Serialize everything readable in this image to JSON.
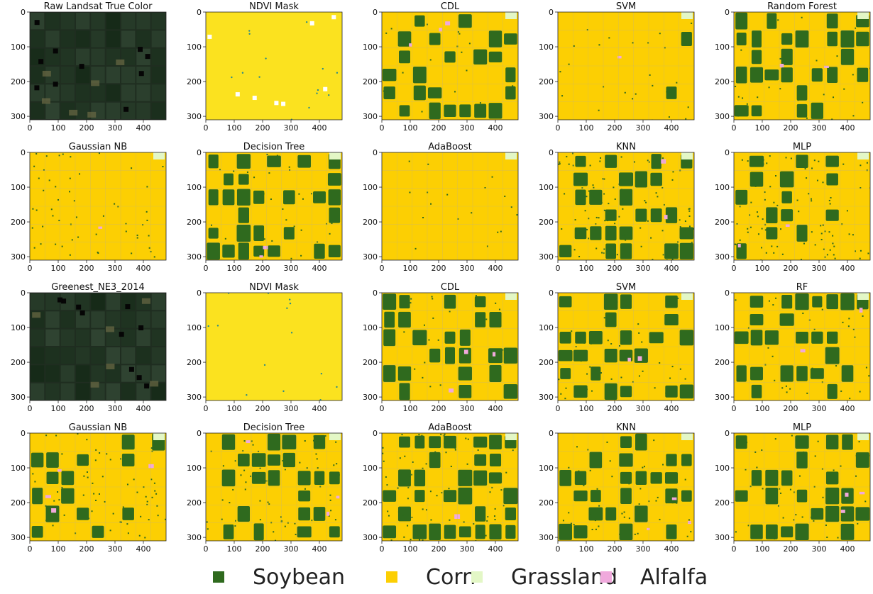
{
  "chart_data": {
    "type": "heatmap",
    "layout": "4 rows x 5 columns of classification map images",
    "xlim": [
      0,
      480
    ],
    "ylim": [
      310,
      0
    ],
    "x_ticks": [
      "0",
      "100",
      "200",
      "300",
      "400"
    ],
    "y_ticks": [
      "0",
      "100",
      "200",
      "300"
    ],
    "colors": {
      "soybean": "#2f6a1e",
      "corn": "#fccf03",
      "grassland": "#e3f7c6",
      "alfalfa": "#f0a9dc",
      "ndvi_background": "#fbe21f",
      "raw_dark": "#1f2d20"
    },
    "panels": [
      {
        "title": "Raw Landsat True Color",
        "style": "raw",
        "seed": 11
      },
      {
        "title": "NDVI Mask",
        "style": "ndvi",
        "seed": 12
      },
      {
        "title": "CDL",
        "style": "classes",
        "soy": 0.36,
        "speck": 0.02,
        "alf": 0.03,
        "seed": 13
      },
      {
        "title": "SVM",
        "style": "classes",
        "soy": 0.02,
        "speck": 0.03,
        "alf": 0.01,
        "seed": 14
      },
      {
        "title": "Random Forest",
        "style": "classes",
        "soy": 0.36,
        "speck": 0.04,
        "alf": 0.02,
        "seed": 15
      },
      {
        "title": "Gaussian NB",
        "style": "classes",
        "soy": 0.01,
        "speck": 0.06,
        "alf": 0.01,
        "seed": 21
      },
      {
        "title": "Decision Tree",
        "style": "classes",
        "soy": 0.36,
        "speck": 0.05,
        "alf": 0.02,
        "seed": 22
      },
      {
        "title": "AdaBoost",
        "style": "classes",
        "soy": 0.0,
        "speck": 0.02,
        "alf": 0.0,
        "seed": 23
      },
      {
        "title": "KNN",
        "style": "classes",
        "soy": 0.3,
        "speck": 0.12,
        "alf": 0.02,
        "seed": 24
      },
      {
        "title": "MLP",
        "style": "classes",
        "soy": 0.22,
        "speck": 0.12,
        "alf": 0.02,
        "seed": 25
      },
      {
        "title": "Greenest_NE3_2014",
        "style": "raw",
        "seed": 31
      },
      {
        "title": "NDVI Mask",
        "style": "ndvi",
        "seed": 32
      },
      {
        "title": "CDL",
        "style": "classes",
        "soy": 0.3,
        "speck": 0.03,
        "alf": 0.03,
        "seed": 33
      },
      {
        "title": "SVM",
        "style": "classes",
        "soy": 0.26,
        "speck": 0.05,
        "alf": 0.02,
        "seed": 34
      },
      {
        "title": "RF",
        "style": "classes",
        "soy": 0.26,
        "speck": 0.05,
        "alf": 0.02,
        "seed": 35
      },
      {
        "title": "Gaussian NB",
        "style": "classes",
        "soy": 0.22,
        "speck": 0.08,
        "alf": 0.04,
        "seed": 41
      },
      {
        "title": "Decision Tree",
        "style": "classes",
        "soy": 0.24,
        "speck": 0.08,
        "alf": 0.03,
        "seed": 42
      },
      {
        "title": "AdaBoost",
        "style": "classes",
        "soy": 0.45,
        "speck": 0.1,
        "alf": 0.01,
        "seed": 43
      },
      {
        "title": "KNN",
        "style": "classes",
        "soy": 0.24,
        "speck": 0.06,
        "alf": 0.03,
        "seed": 44
      },
      {
        "title": "MLP",
        "style": "classes",
        "soy": 0.24,
        "speck": 0.06,
        "alf": 0.03,
        "seed": 45
      }
    ],
    "legend": [
      {
        "label": "Soybean",
        "color": "#2f6a1e"
      },
      {
        "label": "Corn",
        "color": "#fccf03"
      },
      {
        "label": "Grassland",
        "color": "#e3f7c6"
      },
      {
        "label": "Alfalfa",
        "color": "#f0a9dc"
      }
    ]
  }
}
